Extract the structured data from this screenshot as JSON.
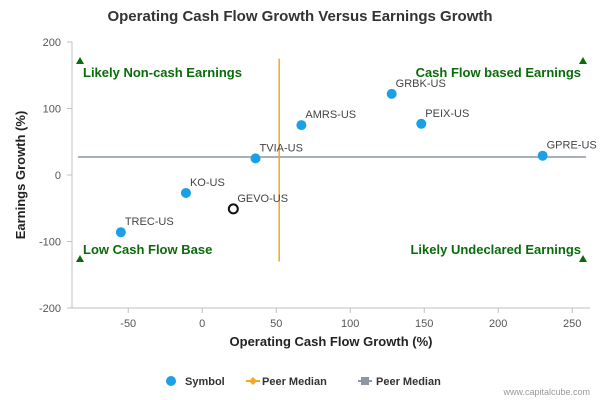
{
  "chart_data": {
    "type": "scatter",
    "title": "Operating Cash Flow Growth Versus Earnings Growth",
    "xlabel": "Operating Cash Flow Growth (%)",
    "ylabel": "Earnings Growth (%)",
    "xlim": [
      -88,
      262
    ],
    "ylim": [
      -200,
      200
    ],
    "xticks": [
      -50,
      0,
      50,
      100,
      150,
      200,
      250
    ],
    "yticks": [
      -200,
      -100,
      0,
      100,
      200
    ],
    "grid": false,
    "legend_position": "bottom-center",
    "points": [
      {
        "label": "GRBK-US",
        "x": 128,
        "y": 122,
        "marker": "filled"
      },
      {
        "label": "PEIX-US",
        "x": 148,
        "y": 77,
        "marker": "filled"
      },
      {
        "label": "AMRS-US",
        "x": 67,
        "y": 75,
        "marker": "filled"
      },
      {
        "label": "GPRE-US",
        "x": 230,
        "y": 29,
        "marker": "filled"
      },
      {
        "label": "TVIA-US",
        "x": 36,
        "y": 25,
        "marker": "filled"
      },
      {
        "label": "KO-US",
        "x": -11,
        "y": -27,
        "marker": "filled"
      },
      {
        "label": "GEVO-US",
        "x": 21,
        "y": -51,
        "marker": "hollow"
      },
      {
        "label": "TREC-US",
        "x": -55,
        "y": -86,
        "marker": "filled"
      }
    ],
    "peer_median": {
      "x": 52,
      "y": 27
    },
    "quadrant_labels": {
      "top_left": "Likely Non-cash Earnings",
      "top_right": "Cash Flow based Earnings",
      "bottom_left": "Low Cash Flow Base",
      "bottom_right": "Likely Undeclared Earnings"
    },
    "legend": [
      {
        "name": "Symbol",
        "color": "#1aa0e6",
        "symbol": "circle"
      },
      {
        "name": "Peer Median",
        "color": "#f5a623",
        "symbol": "diamond"
      },
      {
        "name": "Peer Median",
        "color": "#8c97a3",
        "symbol": "square"
      }
    ],
    "colors": {
      "points": "#1aa0e6",
      "vertical_median": "#f5a623",
      "horizontal_median": "#8c97a3",
      "quadrant_text": "#0a6b0a"
    }
  },
  "credits": "www.capitalcube.com"
}
